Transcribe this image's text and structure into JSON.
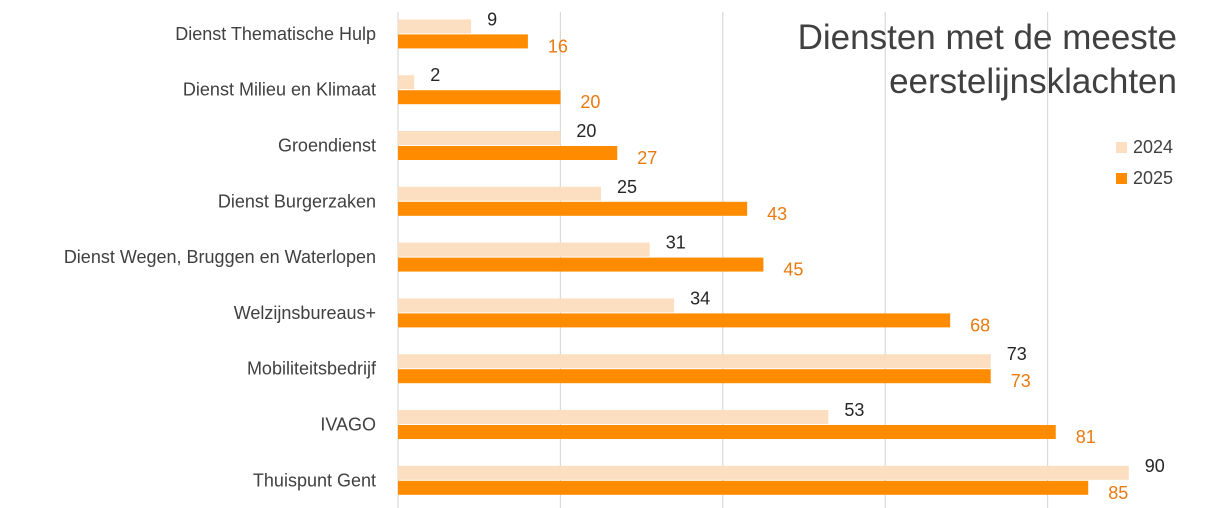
{
  "chart_data": {
    "type": "bar",
    "orientation": "horizontal",
    "title_lines": [
      "Diensten met de meeste",
      "eerstelijnsklachten"
    ],
    "categories": [
      "Dienst Thematische Hulp",
      "Dienst Milieu en Klimaat",
      "Groendienst",
      "Dienst Burgerzaken",
      "Dienst Wegen, Bruggen en Waterlopen",
      "Welzijnsbureaus+",
      "Mobiliteitsbedrijf",
      "IVAGO",
      "Thuispunt Gent"
    ],
    "series": [
      {
        "name": "2024",
        "values": [
          9,
          2,
          20,
          25,
          31,
          34,
          73,
          53,
          90
        ],
        "color": "#FCDFC0",
        "label_color": "#262626"
      },
      {
        "name": "2025",
        "values": [
          16,
          20,
          27,
          43,
          45,
          68,
          73,
          81,
          85
        ],
        "color": "#FF8C00",
        "label_color": "#E97A10"
      }
    ],
    "xlim": [
      0,
      100
    ],
    "gridlines": true,
    "legend_position": "right",
    "axis_label_color": "#404040",
    "gridline_color": "#d9d9d9"
  }
}
